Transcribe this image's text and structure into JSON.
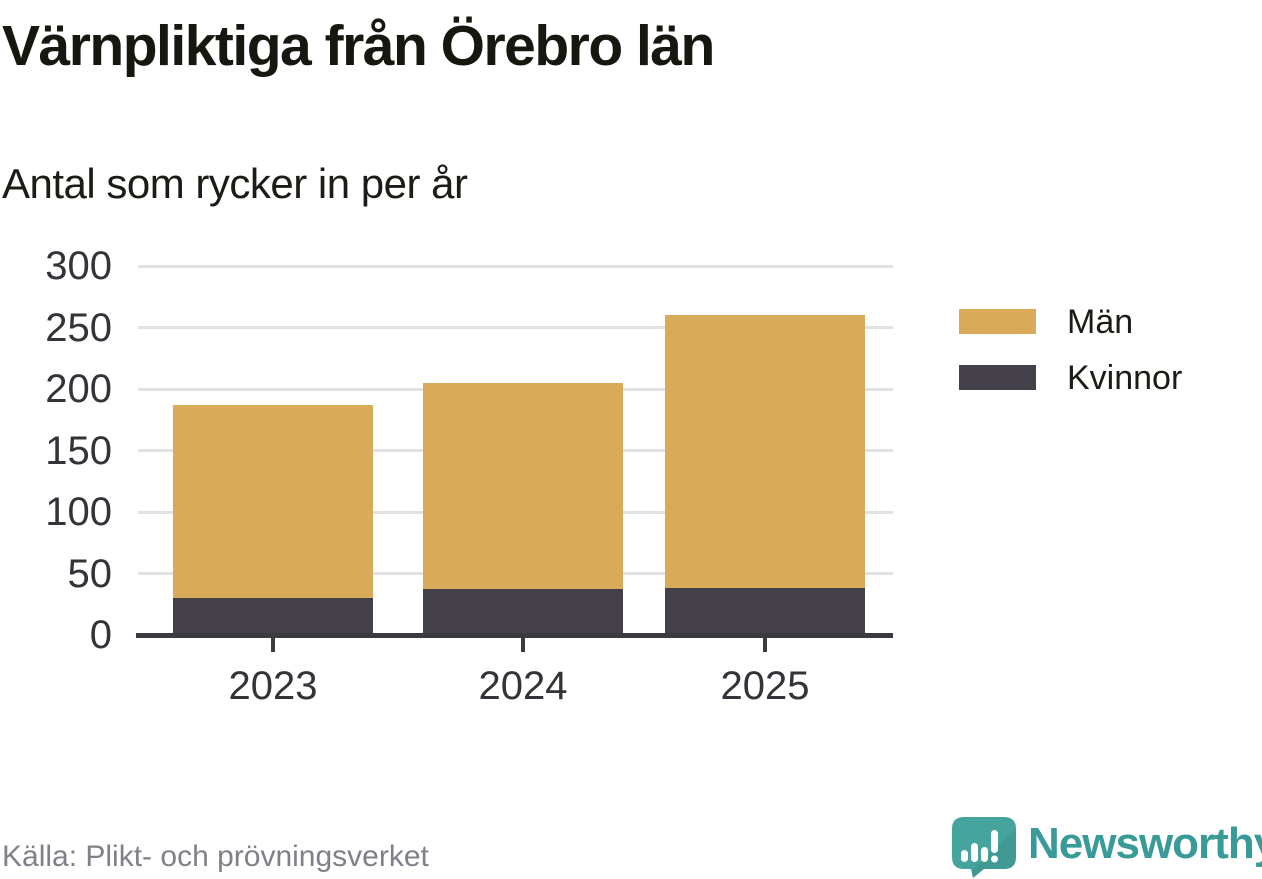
{
  "chart_data": {
    "type": "bar",
    "stacked": true,
    "title": "Värnpliktiga från Örebro län",
    "subtitle": "Antal som rycker in per år",
    "categories": [
      "2023",
      "2024",
      "2025"
    ],
    "series": [
      {
        "name": "Män",
        "color": "#d9aa5a",
        "values": [
          157,
          168,
          222
        ]
      },
      {
        "name": "Kvinnor",
        "color": "#434049",
        "values": [
          30,
          37,
          38
        ]
      }
    ],
    "stack_order_bottom_to_top": [
      "Kvinnor",
      "Män"
    ],
    "totals": [
      187,
      205,
      260
    ],
    "ylim": [
      0,
      300
    ],
    "yticks": [
      0,
      50,
      100,
      150,
      200,
      250,
      300
    ],
    "grid": true,
    "legend_position": "right",
    "source": "Källa: Plikt- och prövningsverket",
    "branding": "Newsworthy"
  },
  "colors": {
    "men_bar": "#d9aa5a",
    "women_bar": "#434049",
    "gridline": "#e2e2e4",
    "axis": "#3b3a41",
    "brand_teal": "#45a59e",
    "brand_text_teal": "#399b97",
    "source_gray": "#80808a"
  }
}
